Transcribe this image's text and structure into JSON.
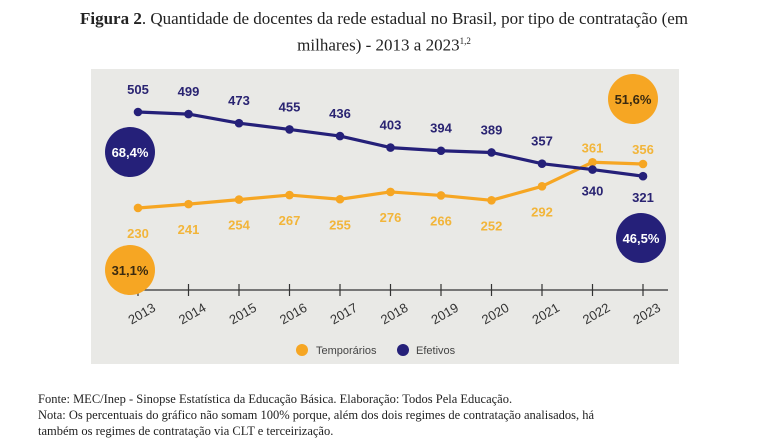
{
  "header": {
    "figure_label": "Figura 2",
    "title_line1": ". Quantidade de docentes da rede estadual no Brasil, por tipo de contratação (em",
    "title_line2": "milhares) - 2013 a 2023",
    "superscript": "1,2"
  },
  "footer": {
    "source": "Fonte: MEC/Inep - Sinopse Estatística da Educação Básica. Elaboração: Todos Pela Educação.",
    "note_line1": "Nota: Os percentuais do gráfico não somam 100% porque, além dos dois regimes de contratação analisados, há",
    "note_line2": "também os regimes de contratação via CLT e terceirização."
  },
  "chart_data": {
    "type": "line",
    "title": "Quantidade de docentes da rede estadual no Brasil, por tipo de contratação (em milhares) - 2013 a 2023",
    "xlabel": "",
    "ylabel": "",
    "grid": false,
    "legend_position": "bottom-center",
    "x": [
      "2013",
      "2014",
      "2015",
      "2016",
      "2017",
      "2018",
      "2019",
      "2020",
      "2021",
      "2022",
      "2023"
    ],
    "series": [
      {
        "name": "Temporários",
        "color": "#f6a623",
        "values": [
          230,
          241,
          254,
          267,
          255,
          276,
          266,
          252,
          292,
          361,
          356
        ]
      },
      {
        "name": "Efetivos",
        "color": "#252079",
        "values": [
          505,
          499,
          473,
          455,
          436,
          403,
          394,
          389,
          357,
          340,
          321
        ]
      }
    ],
    "annotations": [
      {
        "text": "68,4%",
        "series": "Efetivos",
        "year": "2013"
      },
      {
        "text": "31,1%",
        "series": "Temporários",
        "year": "2013"
      },
      {
        "text": "51,6%",
        "series": "Temporários",
        "year": "2023"
      },
      {
        "text": "46,5%",
        "series": "Efetivos",
        "year": "2023"
      }
    ]
  }
}
